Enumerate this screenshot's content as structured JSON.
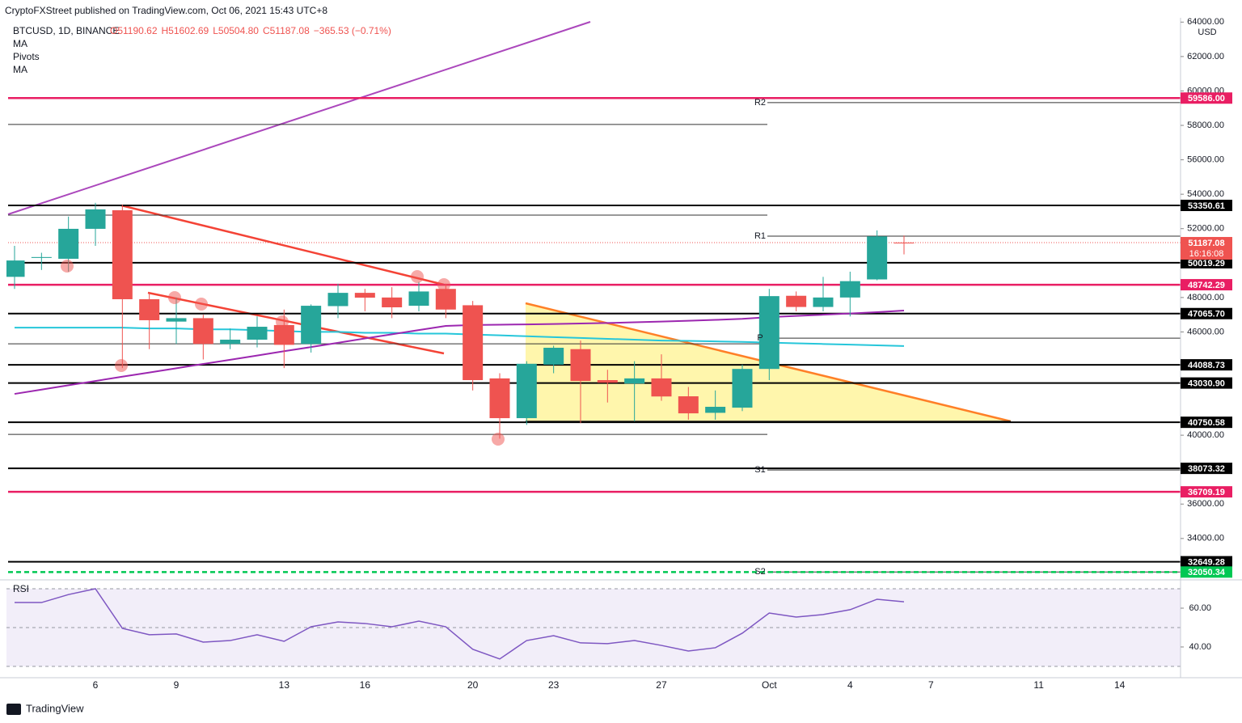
{
  "header": {
    "text": "CryptoFXStreet published on TradingView.com, Oct 06, 2021 15:43 UTC+8"
  },
  "footer": {
    "brand": "TradingView"
  },
  "chart_data": [
    {
      "type": "candlestick",
      "symbol": "BTCUSD, 1D, BINANCE",
      "legend_values": [
        "O51190.62",
        "H51602.69",
        "L50504.80",
        "C51187.08",
        "−365.53 (−0.71%)"
      ],
      "indicator_labels": [
        "MA",
        "Pivots",
        "MA"
      ],
      "currency": "USD",
      "categories": [
        null,
        null,
        null,
        "6",
        null,
        null,
        "9",
        null,
        null,
        null,
        "13",
        null,
        null,
        "16",
        null,
        null,
        null,
        "20",
        null,
        null,
        "23",
        null,
        null,
        null,
        "27",
        null,
        null,
        null,
        "Oct",
        null,
        null,
        "4",
        null,
        null,
        "7",
        null,
        null,
        null,
        "11",
        null,
        null,
        "14",
        null,
        null
      ],
      "open": [
        49200,
        50300,
        50250,
        51990,
        53070,
        47900,
        46600,
        46800,
        45300,
        45550,
        46400,
        45300,
        47500,
        48270,
        48000,
        47520,
        48500,
        47550,
        43300,
        40990,
        44100,
        45000,
        43200,
        43000,
        43300,
        42260,
        41300,
        41600,
        43850,
        48100,
        47450,
        48000,
        49050,
        51190.62,
        null,
        null,
        null,
        null,
        null,
        null,
        null,
        null,
        null,
        null
      ],
      "high": [
        51000,
        50600,
        52700,
        53500,
        53400,
        48300,
        48000,
        47000,
        46200,
        46900,
        47300,
        47600,
        48800,
        48500,
        48600,
        48900,
        48800,
        47800,
        43600,
        44300,
        45200,
        45500,
        43800,
        44300,
        44700,
        42800,
        42600,
        44100,
        48500,
        48350,
        49200,
        49500,
        51900,
        51602.69,
        null,
        null,
        null,
        null,
        null,
        null,
        null,
        null,
        null,
        null
      ],
      "low": [
        48500,
        49600,
        49500,
        51000,
        43900,
        45000,
        45300,
        44400,
        45000,
        45100,
        43900,
        44800,
        46800,
        47200,
        46800,
        47200,
        46800,
        42600,
        39800,
        40600,
        43600,
        40700,
        41900,
        40800,
        42000,
        40900,
        40900,
        41400,
        43200,
        47200,
        47200,
        46900,
        49000,
        50504.8,
        null,
        null,
        null,
        null,
        null,
        null,
        null,
        null,
        null,
        null
      ],
      "close": [
        50150,
        50350,
        51990,
        53120,
        47900,
        46680,
        46800,
        45300,
        45550,
        46300,
        45250,
        47520,
        48270,
        47990,
        47430,
        48350,
        47300,
        43200,
        40990,
        44150,
        45080,
        43150,
        43050,
        43300,
        42250,
        41270,
        41650,
        43850,
        48080,
        47450,
        48000,
        48950,
        51550,
        51187.08,
        null,
        null,
        null,
        null,
        null,
        null,
        null,
        null,
        null,
        null
      ],
      "up_color": "#26a69a",
      "down_color": "#ef5350",
      "moving_averages": [
        {
          "color": "#26c6da",
          "values": [
            46250,
            46250,
            46250,
            46250,
            46250,
            46200,
            46200,
            46150,
            46150,
            46100,
            46050,
            46000,
            46000,
            45950,
            45950,
            45900,
            45900,
            45850,
            45800,
            45750,
            45700,
            45650,
            45600,
            45550,
            45500,
            45480,
            45450,
            45420,
            45380,
            45340,
            45300,
            45260,
            45220,
            45180,
            null,
            null,
            null,
            null,
            null,
            null,
            null,
            null,
            null,
            null
          ]
        },
        {
          "color": "#9c27b0",
          "values": [
            42400,
            42650,
            42900,
            43150,
            43400,
            43640,
            43890,
            44140,
            44380,
            44630,
            44880,
            45120,
            45370,
            45620,
            45860,
            46110,
            46350,
            46400,
            46420,
            46440,
            46460,
            46490,
            46520,
            46560,
            46600,
            46650,
            46700,
            46760,
            46860,
            46930,
            47000,
            47070,
            47150,
            47240,
            null,
            null,
            null,
            null,
            null,
            null,
            null,
            null,
            null,
            null
          ]
        }
      ],
      "ylim": [
        31690,
        64250
      ],
      "yticks": [
        {
          "value": 64000,
          "label": "64000.00"
        },
        {
          "value": 62000,
          "label": "62000.00"
        },
        {
          "value": 60000,
          "label": "60000.00"
        },
        {
          "value": 58000,
          "label": "58000.00"
        },
        {
          "value": 56000,
          "label": "56000.00"
        },
        {
          "value": 54000,
          "label": "54000.00"
        },
        {
          "value": 52000,
          "label": "52000.00"
        },
        {
          "value": 48000,
          "label": "48000.00"
        },
        {
          "value": 46000,
          "label": "46000.00"
        },
        {
          "value": 40000,
          "label": "40000.00"
        },
        {
          "value": 36000,
          "label": "36000.00"
        },
        {
          "value": 34000,
          "label": "34000.00"
        }
      ],
      "price_levels": [
        {
          "value": 59586,
          "label": "59586.00",
          "color": "#e91e63"
        },
        {
          "value": 53350.61,
          "label": "53350.61",
          "color": "#000000"
        },
        {
          "value": 50019.29,
          "label": "50019.29",
          "color": "#000000"
        },
        {
          "value": 48742.29,
          "label": "48742.29",
          "color": "#e91e63"
        },
        {
          "value": 47065.7,
          "label": "47065.70",
          "color": "#000000"
        },
        {
          "value": 44088.73,
          "label": "44088.73",
          "color": "#000000"
        },
        {
          "value": 43030.9,
          "label": "43030.90",
          "color": "#000000"
        },
        {
          "value": 40750.58,
          "label": "40750.58",
          "color": "#000000"
        },
        {
          "value": 38073.32,
          "label": "38073.32",
          "color": "#000000"
        },
        {
          "value": 36709.19,
          "label": "36709.19",
          "color": "#e91e63"
        },
        {
          "value": 32649.28,
          "label": "32649.28",
          "color": "#000000"
        },
        {
          "value": 32050.34,
          "label": "32050.34",
          "color": "#00c853",
          "dashed": true
        }
      ],
      "current_price": {
        "value": 51187.08,
        "label": "51187.08",
        "countdown": "16:16:08",
        "color": "#ef5350"
      },
      "pivots": [
        {
          "value": 59321,
          "label": "R2"
        },
        {
          "value": 51565,
          "label": "R1"
        },
        {
          "value": 45640,
          "label": "P"
        },
        {
          "value": 37979,
          "label": "S1"
        },
        {
          "value": 32055,
          "label": "S2"
        }
      ],
      "previous_pivots": [
        58053,
        52787,
        45312,
        40047
      ]
    },
    {
      "type": "line",
      "title": "RSI",
      "color": "#7e57c2",
      "values": [
        62.9,
        62.9,
        67,
        70,
        49.6,
        46.3,
        46.7,
        42.5,
        43.3,
        46.3,
        42.9,
        50.4,
        52.9,
        52.1,
        50.4,
        53.3,
        50.4,
        38.8,
        33.8,
        43.3,
        45.8,
        42.1,
        41.7,
        43.3,
        40.8,
        37.9,
        39.6,
        47.1,
        57.5,
        55.4,
        56.7,
        59.2,
        64.6,
        63.3,
        null,
        null,
        null,
        null,
        null,
        null,
        null,
        null,
        null,
        null
      ],
      "ylim": [
        25.4,
        72.5
      ],
      "yticks": [
        {
          "value": 60,
          "label": "60.00"
        },
        {
          "value": 40,
          "label": "40.00"
        }
      ],
      "bands": [
        70,
        50,
        30
      ]
    }
  ]
}
